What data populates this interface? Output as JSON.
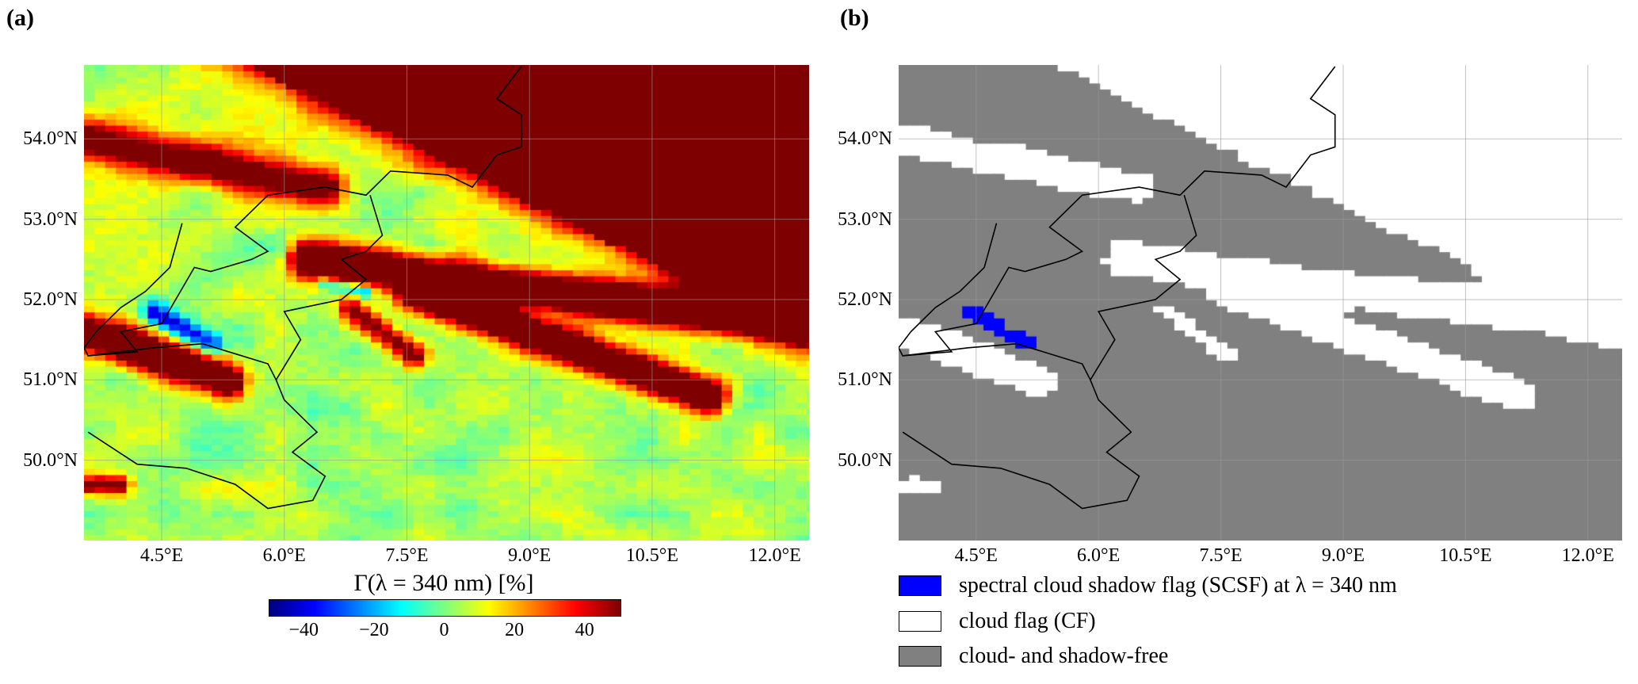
{
  "panels": [
    {
      "label": "(a)"
    },
    {
      "label": "(b)"
    }
  ],
  "map": {
    "lon_range": [
      3.55,
      12.42
    ],
    "lat_range": [
      49.0,
      54.92
    ],
    "lon_ticks": [
      4.5,
      6.0,
      7.5,
      9.0,
      10.5,
      12.0
    ],
    "lon_tick_labels": [
      "4.5°E",
      "6.0°E",
      "7.5°E",
      "9.0°E",
      "10.5°E",
      "12.0°E"
    ],
    "lat_ticks": [
      54.0,
      53.0,
      52.0,
      51.0,
      50.0
    ],
    "lat_tick_labels": [
      "54.0°N",
      "53.0°N",
      "52.0°N",
      "51.0°N",
      "50.0°N"
    ],
    "grid": true
  },
  "colorbar": {
    "label": "Γ(λ = 340 nm) [%]",
    "colormap": "jet",
    "range": [
      -50,
      50
    ],
    "ticks": [
      -40,
      -20,
      0,
      20,
      40
    ],
    "tick_labels": [
      "−40",
      "−20",
      "0",
      "20",
      "40"
    ]
  },
  "legend": [
    {
      "label": "spectral cloud shadow flag (SCSF) at λ = 340 nm",
      "color": "#0000ff"
    },
    {
      "label": "cloud flag (CF)",
      "color": "#ffffff"
    },
    {
      "label": "cloud- and shadow-free",
      "color": "#808080"
    }
  ]
}
